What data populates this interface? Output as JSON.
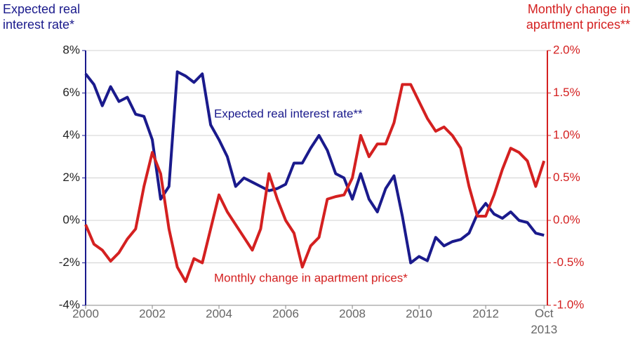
{
  "chart_data": {
    "type": "line",
    "y_label": "Expected real interest rate*",
    "y2_label": "Monthly change in apartment prices**",
    "x": [
      2000,
      2000.25,
      2000.5,
      2000.75,
      2001,
      2001.25,
      2001.5,
      2001.75,
      2002,
      2002.25,
      2002.5,
      2002.75,
      2003,
      2003.25,
      2003.5,
      2003.75,
      2004,
      2004.25,
      2004.5,
      2004.75,
      2005,
      2005.25,
      2005.5,
      2005.75,
      2006,
      2006.25,
      2006.5,
      2006.75,
      2007,
      2007.25,
      2007.5,
      2007.75,
      2008,
      2008.25,
      2008.5,
      2008.75,
      2009,
      2009.25,
      2009.5,
      2009.75,
      2010,
      2010.25,
      2010.5,
      2010.75,
      2011,
      2011.25,
      2011.5,
      2011.75,
      2012,
      2012.25,
      2012.5,
      2012.75,
      2013,
      2013.25,
      2013.5,
      2013.75
    ],
    "series": [
      {
        "name": "Expected real interest rate**",
        "color": "#1a1a8c",
        "axis": "y",
        "values": [
          6.9,
          6.4,
          5.4,
          6.3,
          5.6,
          5.8,
          5.0,
          4.9,
          3.8,
          1.0,
          1.6,
          7.0,
          6.8,
          6.5,
          6.9,
          4.5,
          3.8,
          3.0,
          1.6,
          2.0,
          1.8,
          1.6,
          1.4,
          1.5,
          1.7,
          2.7,
          2.7,
          3.4,
          4.0,
          3.3,
          2.2,
          2.0,
          1.0,
          2.2,
          1.0,
          0.4,
          1.5,
          2.1,
          0.2,
          -2.0,
          -1.7,
          -1.9,
          -0.8,
          -1.2,
          -1.0,
          -0.9,
          -0.6,
          0.3,
          0.8,
          0.3,
          0.1,
          0.4,
          0.0,
          -0.1,
          -0.6,
          -0.7
        ]
      },
      {
        "name": "Monthly change in apartment prices*",
        "color": "#d42020",
        "axis": "y2",
        "values": [
          -0.05,
          -0.28,
          -0.35,
          -0.48,
          -0.38,
          -0.22,
          -0.1,
          0.4,
          0.8,
          0.55,
          -0.1,
          -0.55,
          -0.72,
          -0.45,
          -0.5,
          -0.1,
          0.3,
          0.1,
          -0.05,
          -0.2,
          -0.35,
          -0.1,
          0.55,
          0.25,
          0.0,
          -0.15,
          -0.55,
          -0.3,
          -0.2,
          0.25,
          0.28,
          0.3,
          0.5,
          1.0,
          0.75,
          0.9,
          0.9,
          1.15,
          1.6,
          1.6,
          1.4,
          1.2,
          1.05,
          1.1,
          1.0,
          0.85,
          0.4,
          0.05,
          0.05,
          0.3,
          0.6,
          0.85,
          0.8,
          0.7,
          0.4,
          0.7
        ]
      }
    ],
    "xlim": [
      2000,
      2013.85
    ],
    "xticks": [
      2000,
      2002,
      2004,
      2006,
      2008,
      2010,
      2012,
      {
        "value": 2013.75,
        "label": "Oct 2013"
      }
    ],
    "ylim": [
      -4,
      8
    ],
    "yticks": [
      {
        "value": -4,
        "label": "-4%"
      },
      {
        "value": -2,
        "label": "-2%"
      },
      {
        "value": 0,
        "label": "0%"
      },
      {
        "value": 2,
        "label": "2%"
      },
      {
        "value": 4,
        "label": "4%"
      },
      {
        "value": 6,
        "label": "6%"
      },
      {
        "value": 8,
        "label": "8%"
      }
    ],
    "y2lim": [
      -1,
      2
    ],
    "y2ticks": [
      {
        "value": -1,
        "label": "-1.0%"
      },
      {
        "value": -0.5,
        "label": "-0.5%"
      },
      {
        "value": 0,
        "label": "0.0%"
      },
      {
        "value": 0.5,
        "label": "0.5%"
      },
      {
        "value": 1,
        "label": "1.0%"
      },
      {
        "value": 1.5,
        "label": "1.5%"
      },
      {
        "value": 2,
        "label": "2.0%"
      }
    ],
    "grid": true
  }
}
